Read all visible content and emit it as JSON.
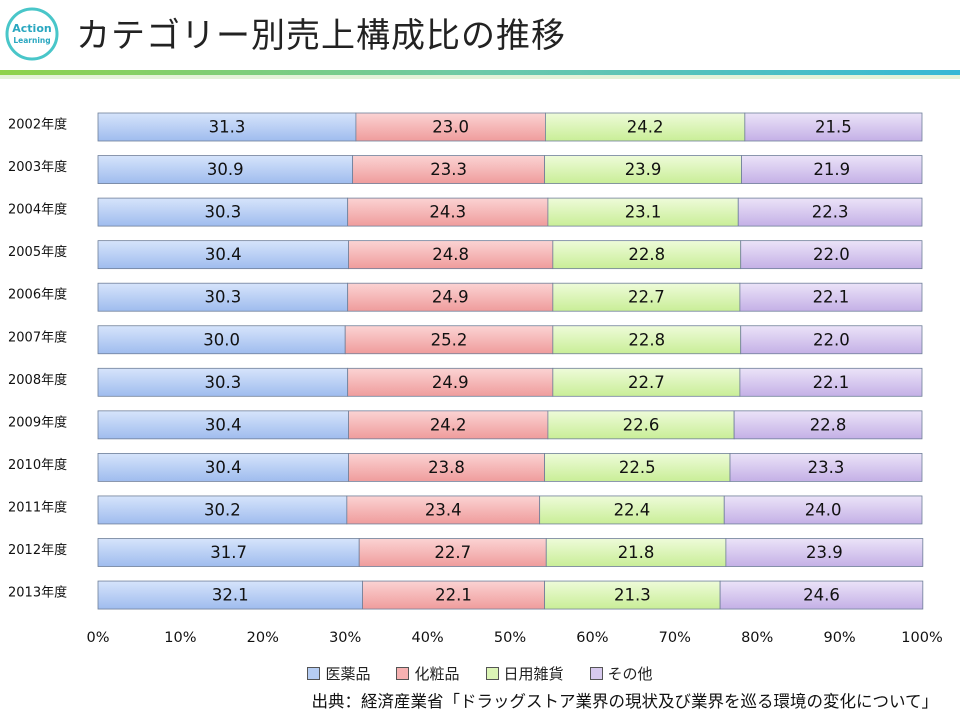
{
  "title": "カテゴリー別売上構成比の推移",
  "logo": {
    "line1": "Action",
    "line2": "Learning"
  },
  "chart_data": {
    "type": "bar",
    "orientation": "horizontal",
    "stacked": true,
    "categories": [
      "2002年度",
      "2003年度",
      "2004年度",
      "2005年度",
      "2006年度",
      "2007年度",
      "2008年度",
      "2009年度",
      "2010年度",
      "2011年度",
      "2012年度",
      "2013年度"
    ],
    "series": [
      {
        "name": "医薬品",
        "color": "#b6cdf3",
        "values": [
          31.3,
          30.9,
          30.3,
          30.4,
          30.3,
          30.0,
          30.3,
          30.4,
          30.4,
          30.2,
          31.7,
          32.1
        ]
      },
      {
        "name": "化粧品",
        "color": "#f6b1b1",
        "values": [
          23.0,
          23.3,
          24.3,
          24.8,
          24.9,
          25.2,
          24.9,
          24.2,
          23.8,
          23.4,
          22.7,
          22.1
        ]
      },
      {
        "name": "日用雑貨",
        "color": "#dcf5b6",
        "values": [
          24.2,
          23.9,
          23.1,
          22.8,
          22.7,
          22.8,
          22.7,
          22.6,
          22.5,
          22.4,
          21.8,
          21.3
        ]
      },
      {
        "name": "その他",
        "color": "#d7c9ee",
        "values": [
          21.5,
          21.9,
          22.3,
          22.0,
          22.1,
          22.0,
          22.1,
          22.8,
          23.3,
          24.0,
          23.9,
          24.6
        ]
      }
    ],
    "xticks": [
      "0%",
      "10%",
      "20%",
      "30%",
      "40%",
      "50%",
      "60%",
      "70%",
      "80%",
      "90%",
      "100%"
    ],
    "xlim": [
      0,
      100
    ],
    "grid": false,
    "legend_position": "bottom"
  },
  "source": "出典：経済産業省「ドラッグストア業界の現状及び業界を巡る環境の変化について」"
}
